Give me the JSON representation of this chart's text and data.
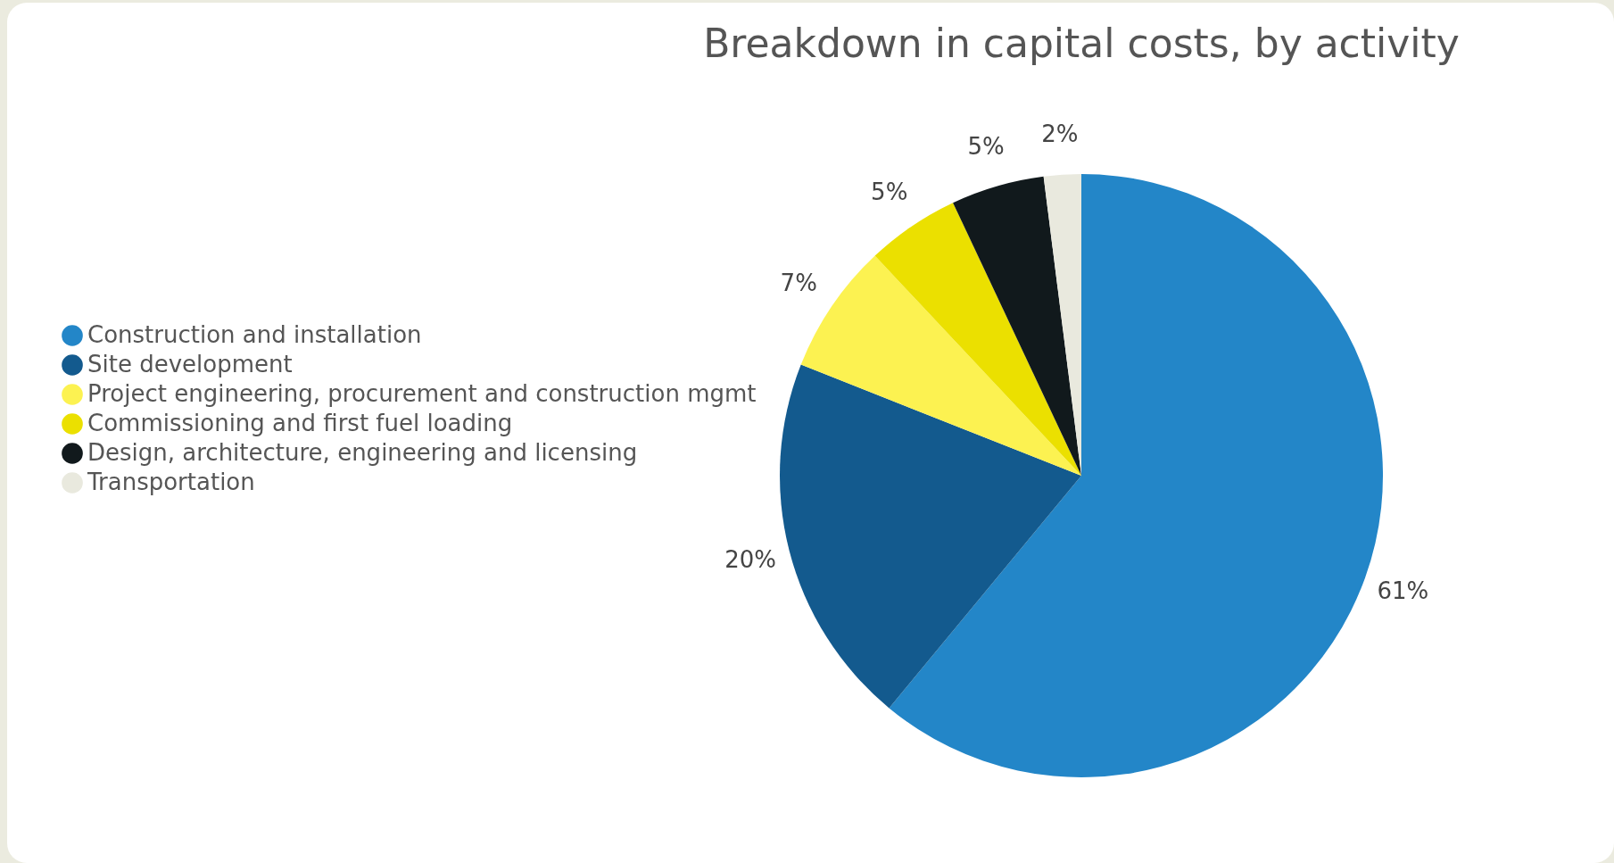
{
  "chart_data": {
    "type": "pie",
    "title": "Breakdown in capital costs, by activity",
    "categories": [
      "Construction and installation",
      "Site development",
      "Project engineering, procurement and construction mgmt",
      "Commissioning and first fuel loading",
      "Design, architecture, engineering and licensing",
      "Transportation"
    ],
    "values": [
      61,
      20,
      7,
      5,
      5,
      2
    ],
    "value_labels": [
      "61%",
      "20%",
      "7%",
      "5%",
      "5%",
      "2%"
    ],
    "colors": [
      "#2386c8",
      "#135a8e",
      "#fcf251",
      "#ebe000",
      "#11191c",
      "#e9e9de"
    ],
    "legend": "left"
  }
}
